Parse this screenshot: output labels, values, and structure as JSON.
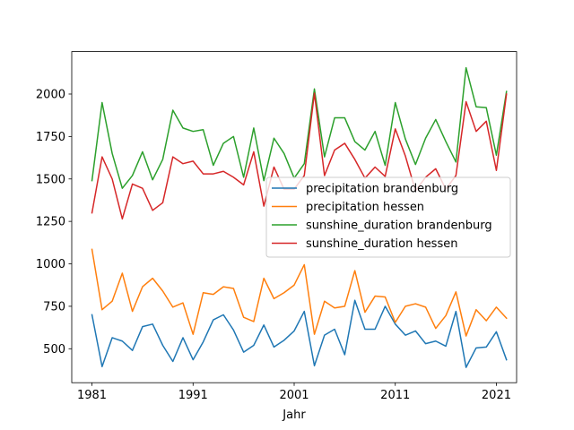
{
  "chart_data": {
    "type": "line",
    "title": "",
    "xlabel": "Jahr",
    "ylabel": "",
    "xlim": [
      1979,
      2023
    ],
    "ylim": [
      300,
      2250
    ],
    "xticks": [
      1981,
      1991,
      2001,
      2011,
      2021
    ],
    "yticks": [
      500,
      750,
      1000,
      1250,
      1500,
      1750,
      2000
    ],
    "grid": false,
    "legend_position": "center-right",
    "x": [
      1981,
      1982,
      1983,
      1984,
      1985,
      1986,
      1987,
      1988,
      1989,
      1990,
      1991,
      1992,
      1993,
      1994,
      1995,
      1996,
      1997,
      1998,
      1999,
      2000,
      2001,
      2002,
      2003,
      2004,
      2005,
      2006,
      2007,
      2008,
      2009,
      2010,
      2011,
      2012,
      2013,
      2014,
      2015,
      2016,
      2017,
      2018,
      2019,
      2020,
      2021,
      2022
    ],
    "series": [
      {
        "name": "precipitation brandenburg",
        "color": "#1f77b4",
        "values": [
          700,
          395,
          565,
          545,
          490,
          630,
          645,
          520,
          425,
          565,
          435,
          540,
          670,
          700,
          610,
          480,
          520,
          640,
          510,
          550,
          605,
          720,
          400,
          580,
          615,
          465,
          785,
          615,
          615,
          750,
          645,
          580,
          605,
          530,
          545,
          515,
          720,
          390,
          505,
          510,
          600,
          435
        ]
      },
      {
        "name": "precipitation hessen",
        "color": "#ff7f0e",
        "values": [
          1085,
          730,
          780,
          945,
          720,
          865,
          915,
          840,
          745,
          770,
          585,
          830,
          820,
          865,
          855,
          685,
          660,
          915,
          795,
          830,
          875,
          995,
          585,
          780,
          740,
          750,
          960,
          715,
          810,
          805,
          655,
          750,
          765,
          745,
          620,
          695,
          835,
          575,
          730,
          665,
          745,
          680
        ]
      },
      {
        "name": "sunshine_duration brandenburg",
        "color": "#2ca02c",
        "values": [
          1490,
          1950,
          1650,
          1445,
          1520,
          1660,
          1495,
          1615,
          1905,
          1800,
          1780,
          1790,
          1580,
          1710,
          1750,
          1510,
          1800,
          1490,
          1740,
          1650,
          1505,
          1590,
          2030,
          1630,
          1860,
          1860,
          1720,
          1670,
          1780,
          1580,
          1950,
          1735,
          1585,
          1740,
          1850,
          1720,
          1600,
          2155,
          1925,
          1920,
          1640,
          2015
        ]
      },
      {
        "name": "sunshine_duration hessen",
        "color": "#d62728",
        "values": [
          1300,
          1630,
          1500,
          1265,
          1470,
          1445,
          1315,
          1360,
          1630,
          1590,
          1605,
          1530,
          1530,
          1545,
          1510,
          1465,
          1660,
          1340,
          1570,
          1440,
          1440,
          1520,
          2005,
          1520,
          1670,
          1710,
          1615,
          1505,
          1570,
          1515,
          1795,
          1635,
          1430,
          1510,
          1560,
          1440,
          1520,
          1955,
          1780,
          1840,
          1550,
          2000
        ]
      }
    ]
  }
}
